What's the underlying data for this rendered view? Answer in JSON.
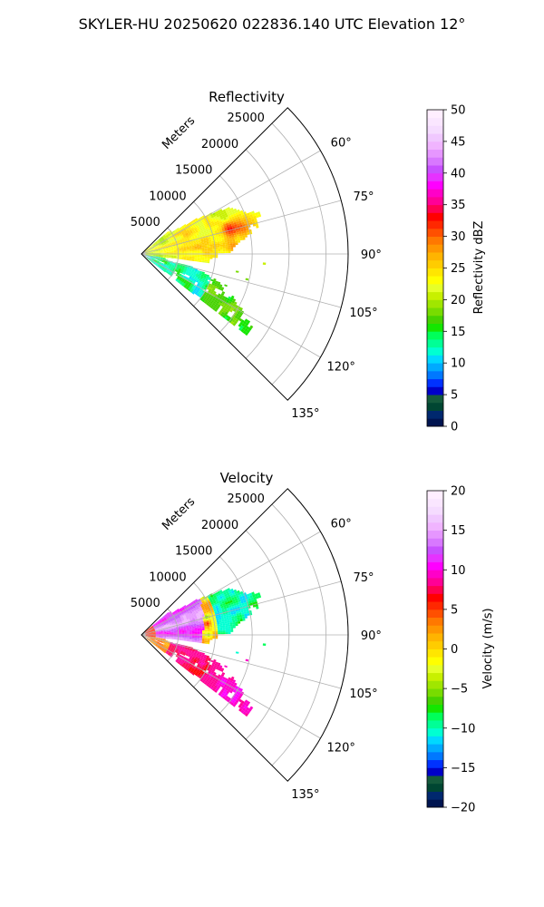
{
  "suptitle": "SKYLER-HU  20250620  022836.140 UTC Elevation 12°",
  "chart_data": [
    {
      "type": "heatmap",
      "subtype": "polar sector (PPI)",
      "title": "Reflectivity",
      "radial_label": "Meters",
      "radial_ticks": [
        "5000",
        "10000",
        "15000",
        "20000",
        "25000"
      ],
      "r_max": 28000,
      "theta_range_deg": [
        45,
        135
      ],
      "angle_ticks": [
        "60°",
        "75°",
        "90°",
        "105°",
        "120°",
        "135°"
      ],
      "grid": true,
      "colorbar": {
        "label": "Reflectivity dBZ",
        "min": 0,
        "max": 50,
        "ticks": [
          "0",
          "5",
          "10",
          "15",
          "20",
          "25",
          "30",
          "35",
          "40",
          "45",
          "50"
        ],
        "colors": [
          "#001450",
          "#00286e",
          "#004632",
          "#145a3c",
          "#0000c8",
          "#0032ff",
          "#0078ff",
          "#00aaff",
          "#00d8ff",
          "#00ffd2",
          "#00ff96",
          "#00ff5a",
          "#14e600",
          "#46d200",
          "#78dc00",
          "#a0e600",
          "#c8f000",
          "#e6ff28",
          "#ffff00",
          "#ffe600",
          "#ffcc00",
          "#ffb400",
          "#ff9600",
          "#ff7800",
          "#ff5000",
          "#ff2800",
          "#ff0000",
          "#ff0050",
          "#ff0096",
          "#ff00c8",
          "#ff00ff",
          "#e632ff",
          "#c850ff",
          "#d878ff",
          "#e696ff",
          "#f0b4ff",
          "#f0c8ff",
          "#f5dcff",
          "#fae6ff",
          "#ffeeff"
        ]
      },
      "field_summary": "main echo 20-30 dBZ in the 60°-100° sector out to ~15 km with 30-35 dBZ cores near 72°-90°; weaker 10-20 dBZ returns along 105°-125°"
    },
    {
      "type": "heatmap",
      "subtype": "polar sector (PPI)",
      "title": "Velocity",
      "radial_label": "Meters",
      "radial_ticks": [
        "5000",
        "10000",
        "15000",
        "20000",
        "25000"
      ],
      "r_max": 28000,
      "theta_range_deg": [
        45,
        135
      ],
      "angle_ticks": [
        "60°",
        "75°",
        "90°",
        "105°",
        "120°",
        "135°"
      ],
      "grid": true,
      "colorbar": {
        "label": "Velocity (m/s)",
        "min": -20,
        "max": 20,
        "ticks": [
          "−20",
          "−15",
          "−10",
          "−5",
          "0",
          "5",
          "10",
          "15",
          "20"
        ],
        "colors": [
          "#001450",
          "#00286e",
          "#004632",
          "#145a3c",
          "#0000c8",
          "#0032ff",
          "#0078ff",
          "#00aaff",
          "#00d8ff",
          "#00ffd2",
          "#00ff96",
          "#00ff5a",
          "#14e600",
          "#46d200",
          "#78dc00",
          "#a0e600",
          "#c8f000",
          "#e6ff28",
          "#ffff00",
          "#ffe600",
          "#ffcc00",
          "#ffb400",
          "#ff9600",
          "#ff7800",
          "#ff5000",
          "#ff2800",
          "#ff0000",
          "#ff0050",
          "#ff0096",
          "#ff00c8",
          "#ff00ff",
          "#e632ff",
          "#c850ff",
          "#d878ff",
          "#e696ff",
          "#f0b4ff",
          "#f0c8ff",
          "#f5dcff",
          "#fae6ff",
          "#ffeeff"
        ]
      },
      "field_summary": "+10 to +18 m/s (magenta/purple) near the radar, -8 to -14 m/s (cyan/green) at 10-15 km in the 60°-95° sector; +2 to +10 m/s (orange/red) along 105°-125°"
    }
  ]
}
